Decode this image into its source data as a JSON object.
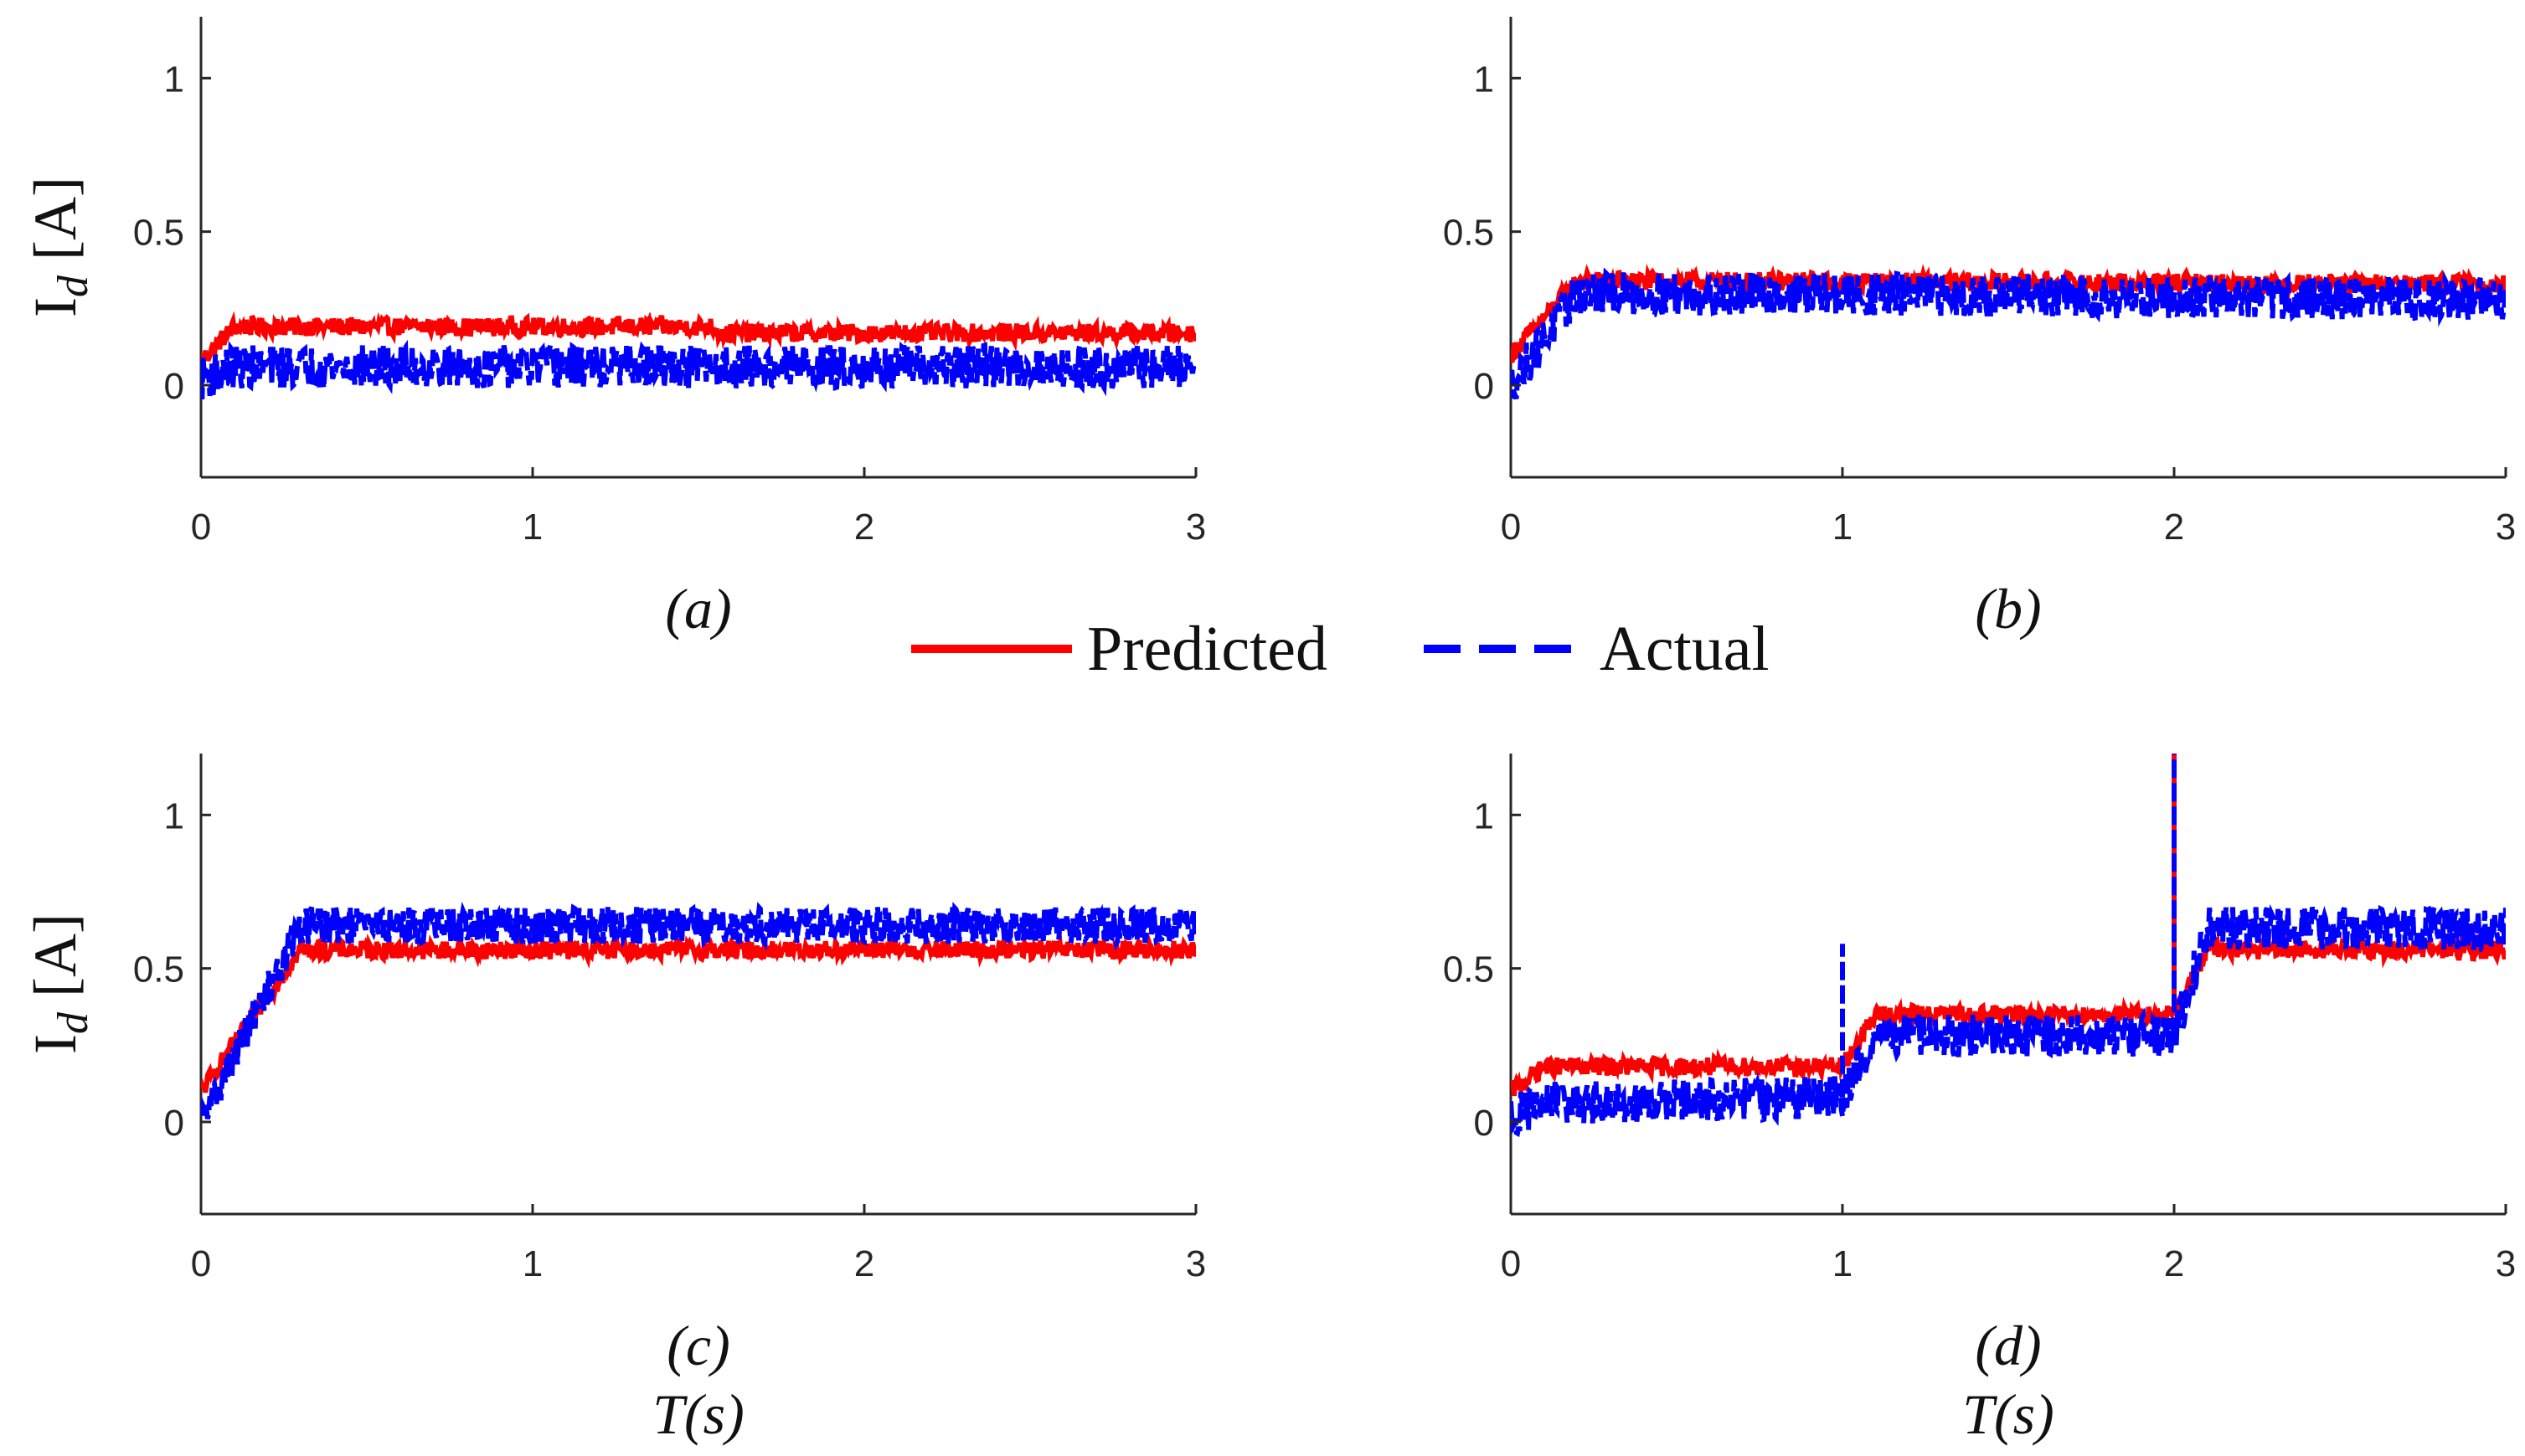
{
  "figure": {
    "legend": [
      {
        "label": "Predicted",
        "color": "#ff0000",
        "style": "solid"
      },
      {
        "label": "Actual",
        "color": "#0000ff",
        "style": "dashed"
      }
    ]
  },
  "chart_data": [
    {
      "type": "line",
      "caption": "(a)",
      "ylabel": "",
      "xlabel": "",
      "xlim": [
        0,
        3
      ],
      "ylim": [
        -0.3,
        1.2
      ],
      "xticks": [
        "0",
        "1",
        "2",
        "3"
      ],
      "yticks": [
        "0",
        "0.5",
        "1"
      ],
      "ytick_values": [
        0,
        0.5,
        1
      ],
      "series": [
        {
          "name": "Predicted",
          "color": "#ff0000",
          "base": [
            [
              0,
              0.08
            ],
            [
              0.1,
              0.19
            ],
            [
              1.55,
              0.19
            ],
            [
              1.56,
              0.17
            ],
            [
              3,
              0.17
            ]
          ],
          "noise": 0.03
        },
        {
          "name": "Actual",
          "color": "#0000ff",
          "base": [
            [
              0,
              0.02
            ],
            [
              0.1,
              0.06
            ],
            [
              3,
              0.06
            ]
          ],
          "noise": 0.07
        }
      ]
    },
    {
      "type": "line",
      "caption": "(b)",
      "ylabel": "",
      "xlabel": "",
      "xlim": [
        0,
        3
      ],
      "ylim": [
        -0.3,
        1.2
      ],
      "xticks": [
        "0",
        "1",
        "2",
        "3"
      ],
      "yticks": [
        "0",
        "0.5",
        "1"
      ],
      "ytick_values": [
        0,
        0.5,
        1
      ],
      "series": [
        {
          "name": "Predicted",
          "color": "#ff0000",
          "base": [
            [
              0,
              0.1
            ],
            [
              0.2,
              0.34
            ],
            [
              3,
              0.33
            ]
          ],
          "noise": 0.03
        },
        {
          "name": "Actual",
          "color": "#0000ff",
          "base": [
            [
              0,
              0.0
            ],
            [
              0.2,
              0.3
            ],
            [
              3,
              0.28
            ]
          ],
          "noise": 0.07
        }
      ]
    },
    {
      "type": "line",
      "caption": "(c)",
      "ylabel": "I_d [A]",
      "xlabel": "T(s)",
      "xlim": [
        0,
        3
      ],
      "ylim": [
        -0.3,
        1.2
      ],
      "xticks": [
        "0",
        "1",
        "2",
        "3"
      ],
      "yticks": [
        "0",
        "0.5",
        "1"
      ],
      "ytick_values": [
        0,
        0.5,
        1
      ],
      "series": [
        {
          "name": "Predicted",
          "color": "#ff0000",
          "base": [
            [
              0,
              0.1
            ],
            [
              0.3,
              0.56
            ],
            [
              3,
              0.56
            ]
          ],
          "noise": 0.03
        },
        {
          "name": "Actual",
          "color": "#0000ff",
          "base": [
            [
              0,
              0.0
            ],
            [
              0.3,
              0.64
            ],
            [
              3,
              0.64
            ]
          ],
          "noise": 0.06
        }
      ]
    },
    {
      "type": "line",
      "caption": "(d)",
      "ylabel": "",
      "xlabel": "T(s)",
      "xlim": [
        0,
        3
      ],
      "ylim": [
        -0.3,
        1.2
      ],
      "xticks": [
        "0",
        "1",
        "2",
        "3"
      ],
      "yticks": [
        "0",
        "0.5",
        "1"
      ],
      "ytick_values": [
        0,
        0.5,
        1
      ],
      "series": [
        {
          "name": "Predicted",
          "color": "#ff0000",
          "base": [
            [
              0,
              0.1
            ],
            [
              0.1,
              0.18
            ],
            [
              1.0,
              0.18
            ],
            [
              1.1,
              0.35
            ],
            [
              2.0,
              0.35
            ],
            [
              2.1,
              0.56
            ],
            [
              3,
              0.56
            ]
          ],
          "noise": 0.03,
          "spikes": [
            [
              2.0,
              1.2
            ]
          ]
        },
        {
          "name": "Actual",
          "color": "#0000ff",
          "base": [
            [
              0,
              0.02
            ],
            [
              0.1,
              0.06
            ],
            [
              1.0,
              0.08
            ],
            [
              1.1,
              0.28
            ],
            [
              2.0,
              0.28
            ],
            [
              2.1,
              0.63
            ],
            [
              3,
              0.63
            ]
          ],
          "noise": 0.07,
          "spikes": [
            [
              1.0,
              0.58
            ],
            [
              2.0,
              1.2
            ]
          ]
        }
      ]
    }
  ]
}
